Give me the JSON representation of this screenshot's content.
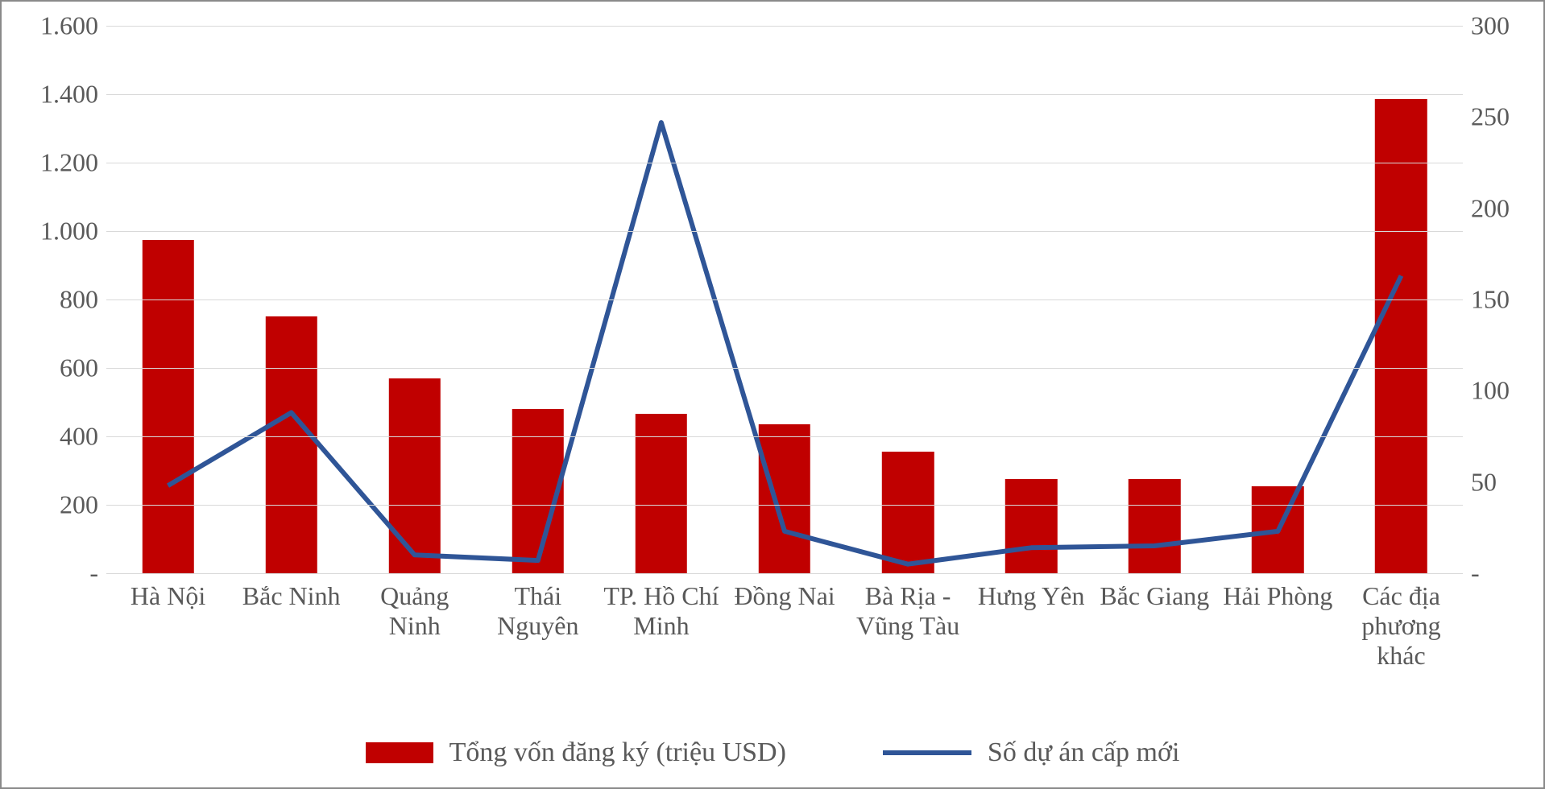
{
  "chart": {
    "type": "bar-line-combo",
    "background_color": "#ffffff",
    "border_color": "#8a8a8a",
    "grid_color": "#d9d9d9",
    "axis_label_color": "#595959",
    "tick_fontsize": 32,
    "xlabel_fontsize": 32,
    "legend_fontsize": 34,
    "font_family": "Times New Roman",
    "categories": [
      "Hà Nội",
      "Bắc Ninh",
      "Quảng Ninh",
      "Thái Nguyên",
      "TP. Hồ Chí Minh",
      "Đồng Nai",
      "Bà Rịa - Vũng Tàu",
      "Hưng Yên",
      "Bắc Giang",
      "Hải Phòng",
      "Các địa phương khác"
    ],
    "left_axis": {
      "min": 0,
      "max": 1600,
      "tick_step": 200,
      "tick_labels": [
        " -   ",
        " 200 ",
        " 400 ",
        " 600 ",
        " 800 ",
        " 1.000 ",
        " 1.200 ",
        " 1.400 ",
        " 1.600 "
      ]
    },
    "right_axis": {
      "min": 0,
      "max": 300,
      "tick_step": 50,
      "tick_labels": [
        " -   ",
        " 50 ",
        " 100 ",
        " 150 ",
        " 200 ",
        " 250 ",
        " 300 "
      ]
    },
    "bar_series": {
      "name": "Tổng vốn đăng ký (triệu  USD)",
      "color": "#c00000",
      "values": [
        975,
        750,
        570,
        480,
        465,
        435,
        355,
        275,
        275,
        255,
        1385
      ],
      "bar_width_ratio": 0.42
    },
    "line_series": {
      "name": "Số dự án  cấp mới",
      "color": "#2f5597",
      "line_width": 6,
      "values": [
        48,
        88,
        10,
        7,
        247,
        23,
        5,
        14,
        15,
        23,
        163
      ]
    }
  }
}
